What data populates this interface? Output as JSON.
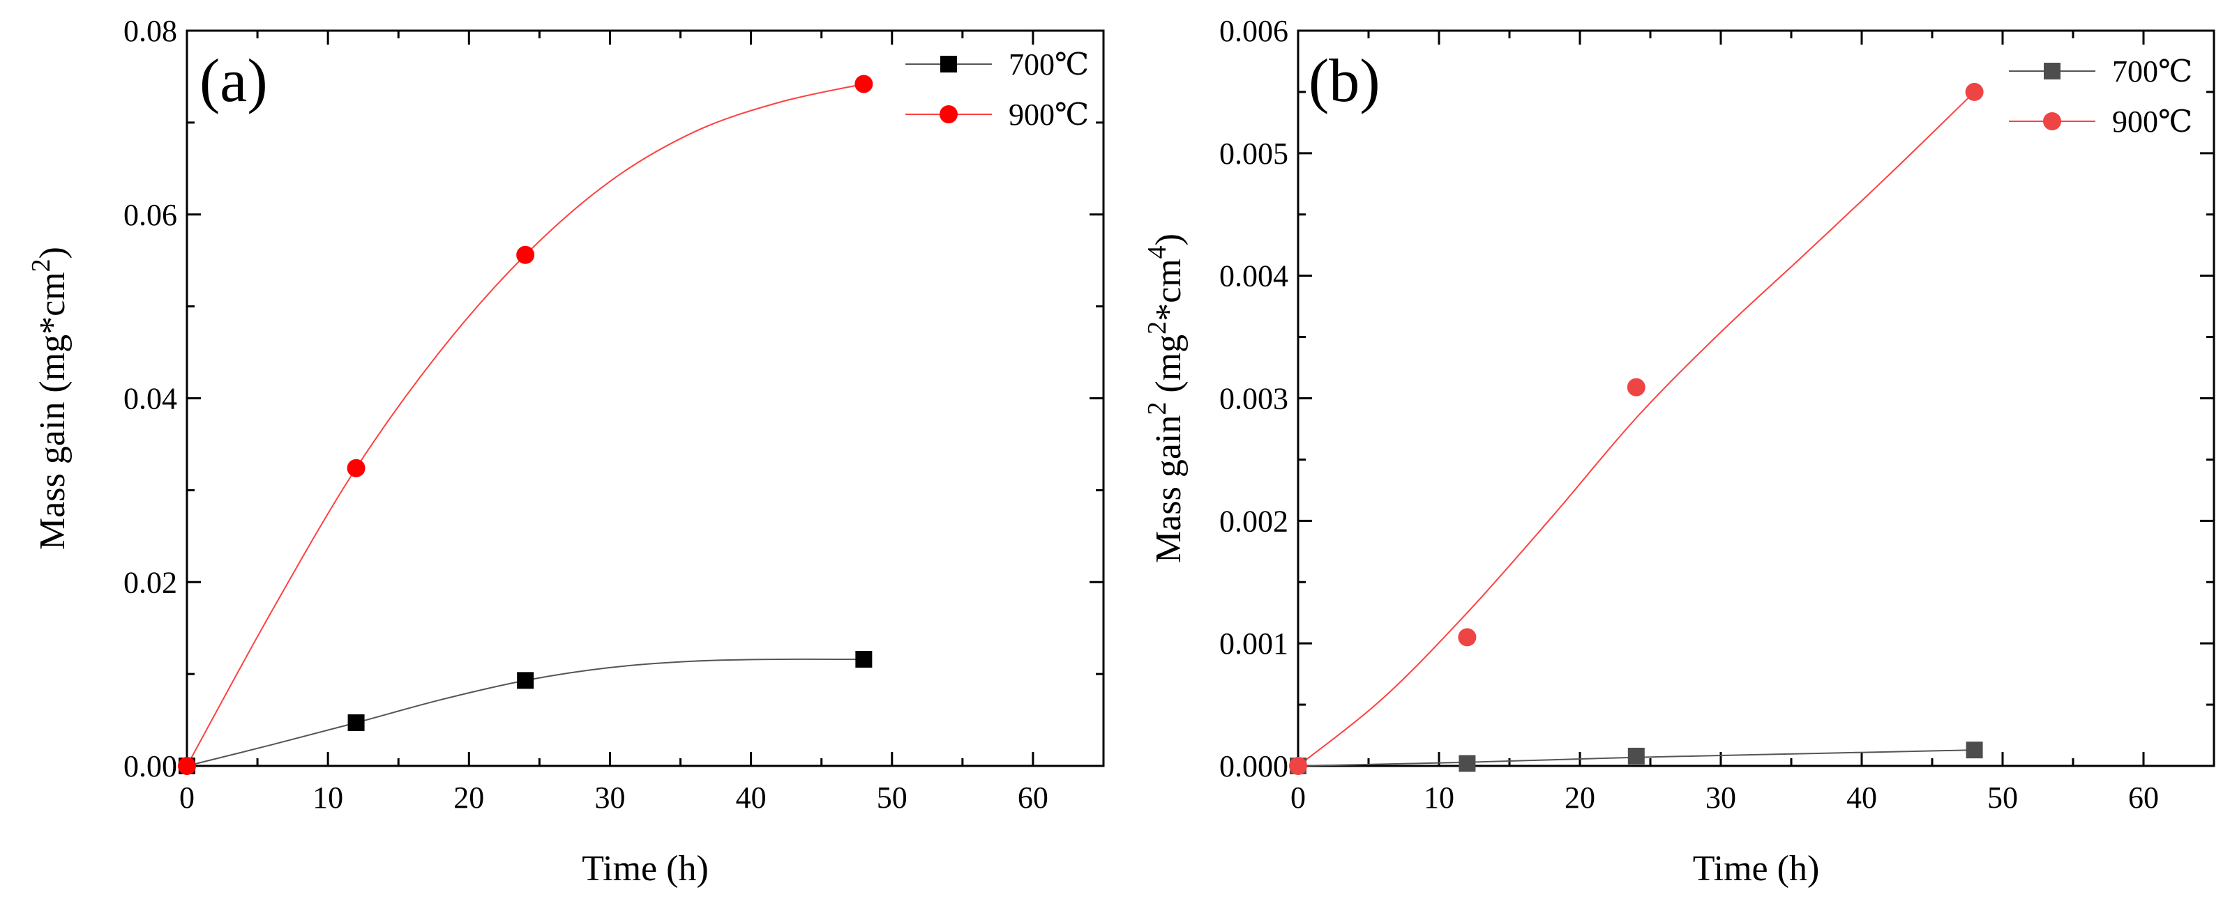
{
  "chart_data": [
    {
      "type": "scatter",
      "panel_label": "(a)",
      "xlabel": "Time (h)",
      "ylabel": "Mass gain (mg*cm",
      "ylabel_sup": "2",
      "ylabel_end": ")",
      "xlim": [
        0,
        65
      ],
      "ylim": [
        0,
        0.08
      ],
      "xticks": [
        0,
        10,
        20,
        30,
        40,
        50,
        60
      ],
      "xtick_labels": [
        "0",
        "10",
        "20",
        "30",
        "40",
        "50",
        "60"
      ],
      "yticks": [
        0,
        0.02,
        0.04,
        0.06,
        0.08
      ],
      "ytick_labels": [
        "0.00",
        "0.02",
        "0.04",
        "0.06",
        "0.08"
      ],
      "legend_position": "top-right",
      "series": [
        {
          "name": "700℃",
          "marker": "square",
          "color": "#000000",
          "line_color": "#555555",
          "x": [
            0,
            12,
            24,
            48
          ],
          "y": [
            0,
            0.0047,
            0.0093,
            0.0116
          ],
          "fit_curve": [
            [
              0,
              0
            ],
            [
              6,
              0.0023
            ],
            [
              12,
              0.0047
            ],
            [
              18,
              0.0072
            ],
            [
              24,
              0.0093
            ],
            [
              30,
              0.0107
            ],
            [
              36,
              0.0114
            ],
            [
              42,
              0.0116
            ],
            [
              48,
              0.0116
            ]
          ]
        },
        {
          "name": "900℃",
          "marker": "circle",
          "color": "#ff0000",
          "line_color": "#ff4040",
          "x": [
            0,
            12,
            24,
            48
          ],
          "y": [
            0,
            0.0324,
            0.0556,
            0.0742
          ],
          "fit_curve": [
            [
              0,
              0
            ],
            [
              6,
              0.0168
            ],
            [
              12,
              0.0324
            ],
            [
              18,
              0.0452
            ],
            [
              24,
              0.0556
            ],
            [
              30,
              0.0636
            ],
            [
              36,
              0.069
            ],
            [
              42,
              0.0722
            ],
            [
              48,
              0.0742
            ]
          ]
        }
      ]
    },
    {
      "type": "scatter",
      "panel_label": "(b)",
      "xlabel": "Time (h)",
      "ylabel": "Mass gain",
      "ylabel_sup": "2",
      "ylabel_mid": " (mg",
      "ylabel_sup2": "2",
      "ylabel_mid2": "*cm",
      "ylabel_sup3": "4",
      "ylabel_end": ")",
      "xlim": [
        0,
        65
      ],
      "ylim": [
        0,
        0.006
      ],
      "xticks": [
        0,
        10,
        20,
        30,
        40,
        50,
        60
      ],
      "xtick_labels": [
        "0",
        "10",
        "20",
        "30",
        "40",
        "50",
        "60"
      ],
      "yticks": [
        0,
        0.001,
        0.002,
        0.003,
        0.004,
        0.005,
        0.006
      ],
      "ytick_labels": [
        "0.000",
        "0.001",
        "0.002",
        "0.003",
        "0.004",
        "0.005",
        "0.006"
      ],
      "legend_position": "top-right",
      "series": [
        {
          "name": "700℃",
          "marker": "square",
          "color": "#4d4d4d",
          "line_color": "#555555",
          "x": [
            0,
            12,
            24,
            48
          ],
          "y": [
            0,
            2e-05,
            8e-05,
            0.00013
          ],
          "fit_curve": [
            [
              0,
              0
            ],
            [
              12,
              3e-05
            ],
            [
              24,
              7e-05
            ],
            [
              36,
              0.0001
            ],
            [
              48,
              0.00013
            ]
          ]
        },
        {
          "name": "900℃",
          "marker": "circle",
          "color": "#ef4444",
          "line_color": "#ff4040",
          "x": [
            0,
            12,
            24,
            48
          ],
          "y": [
            0,
            0.00105,
            0.00309,
            0.0055
          ],
          "fit_curve": [
            [
              0,
              0
            ],
            [
              6,
              0.00055
            ],
            [
              12,
              0.00125
            ],
            [
              18,
              0.00203
            ],
            [
              24,
              0.00284
            ],
            [
              30,
              0.00354
            ],
            [
              36,
              0.00418
            ],
            [
              42,
              0.00483
            ],
            [
              48,
              0.0055
            ]
          ]
        }
      ]
    }
  ]
}
